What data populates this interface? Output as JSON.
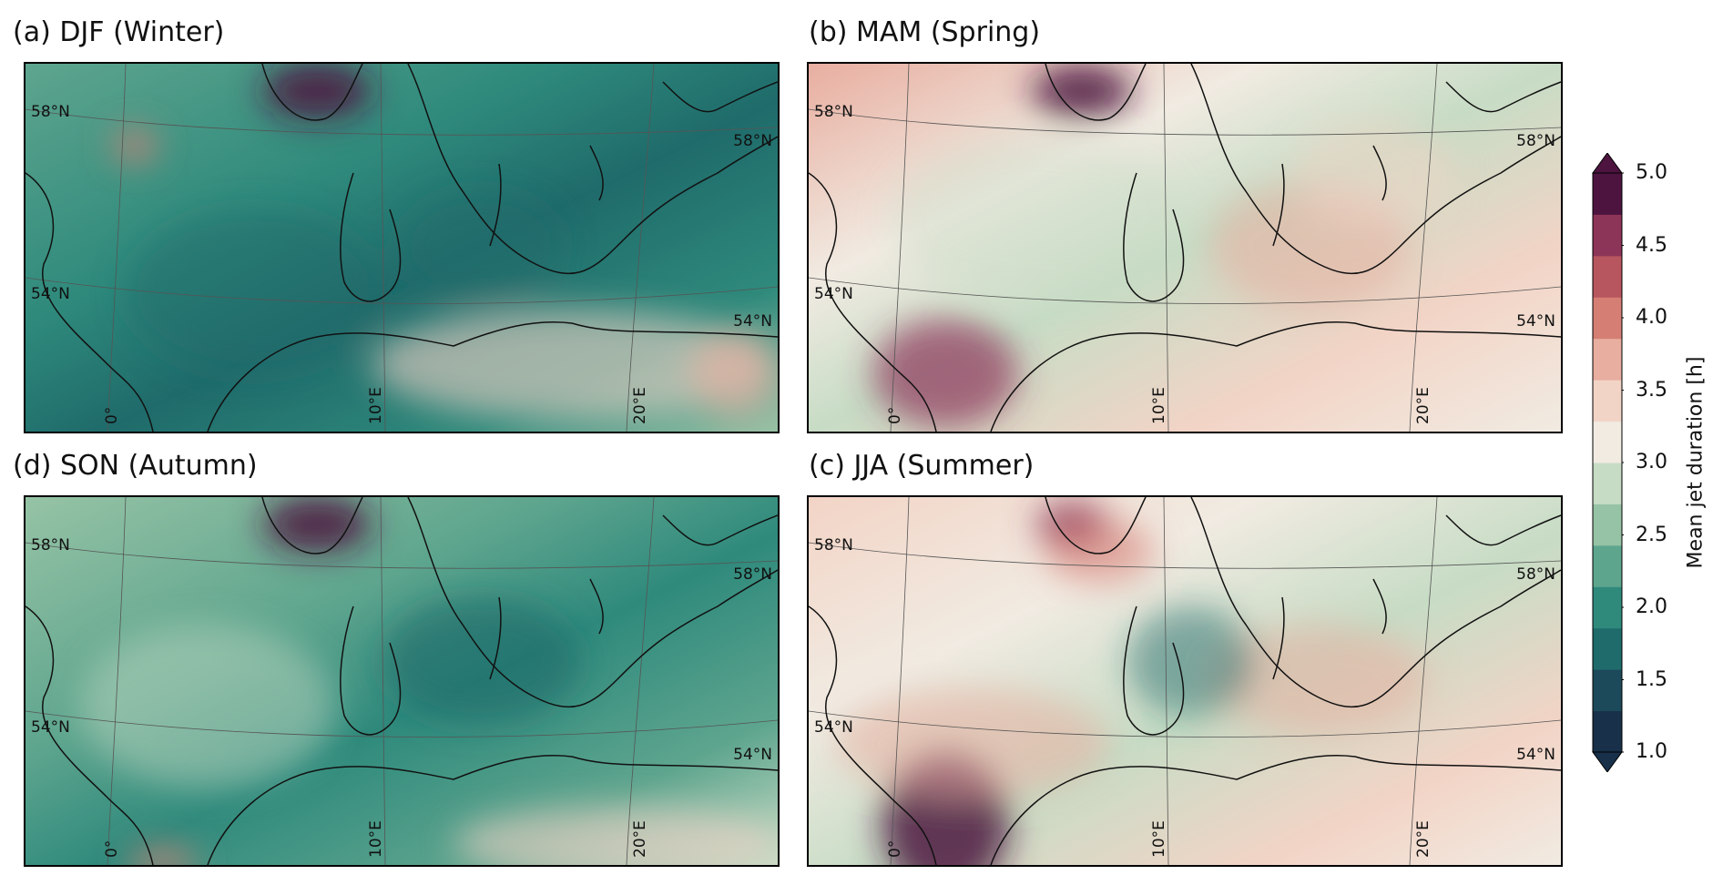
{
  "panels": [
    {
      "id": "djf",
      "title": "(a) DJF (Winter)",
      "palette": "winter"
    },
    {
      "id": "mam",
      "title": "(b) MAM (Spring)",
      "palette": "spring"
    },
    {
      "id": "son",
      "title": "(d) SON (Autumn)",
      "palette": "autumn"
    },
    {
      "id": "jja",
      "title": "(c) JJA (Summer)",
      "palette": "summer"
    }
  ],
  "gridlabels": {
    "lat_58_left": "58°N",
    "lat_58_right": "58°N",
    "lat_54_left": "54°N",
    "lat_54_right": "54°N",
    "lon_0": "0°",
    "lon_10": "10°E",
    "lon_20": "20°E"
  },
  "colorbar": {
    "label": "Mean jet duration [h]",
    "range": [
      1.0,
      5.0
    ],
    "ticks": [
      "1.0",
      "1.5",
      "2.0",
      "2.5",
      "3.0",
      "3.5",
      "4.0",
      "4.5",
      "5.0"
    ],
    "colors": [
      "#18304a",
      "#1c4a5a",
      "#1f6b6b",
      "#2f8a7c",
      "#5ea58e",
      "#96c3a5",
      "#c7dcc5",
      "#f1ebe2",
      "#f2d4c6",
      "#e8aea0",
      "#d57f74",
      "#b8565f",
      "#8d3558",
      "#4d1440"
    ]
  }
}
